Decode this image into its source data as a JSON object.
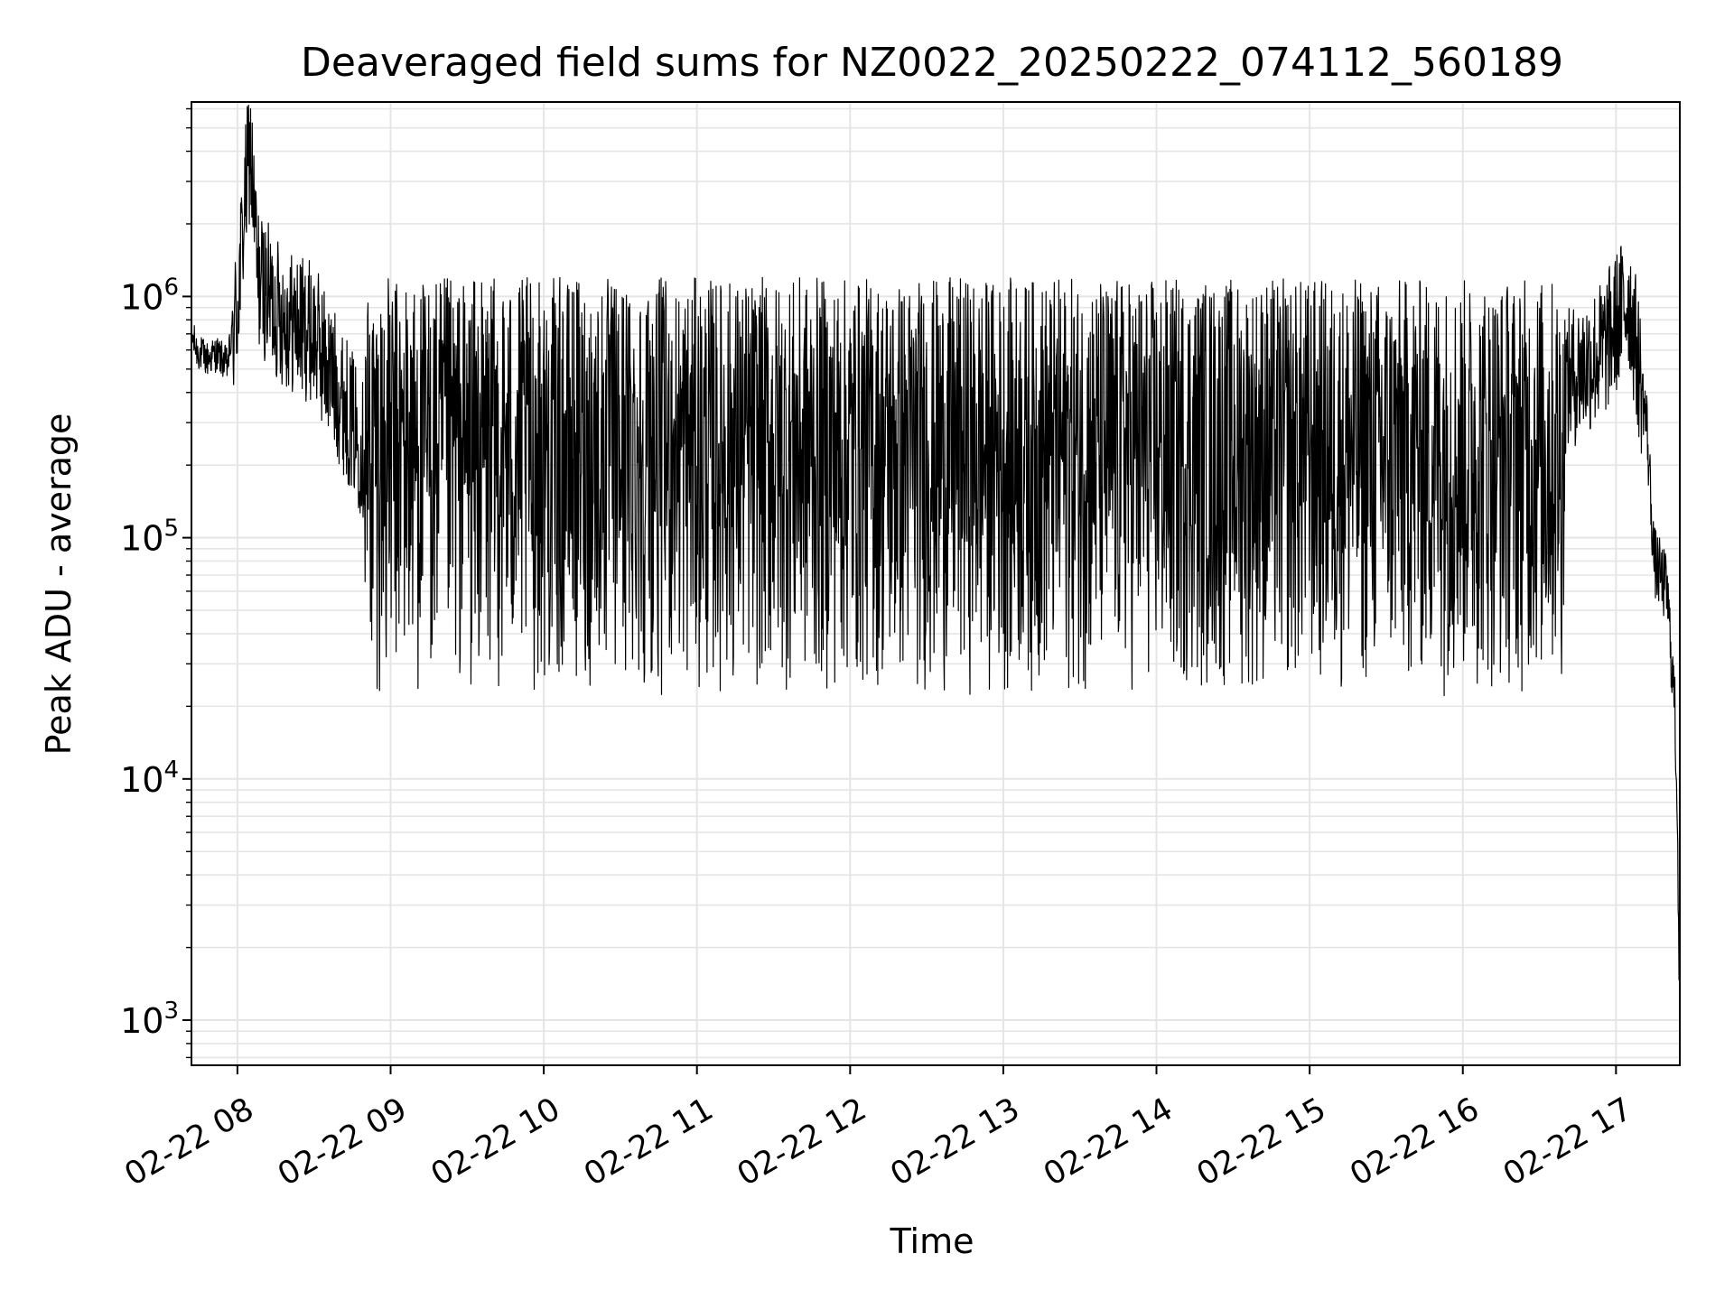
{
  "chart_data": {
    "type": "line",
    "title": "Deaveraged field sums for NZ0022_20250222_074112_560189",
    "xlabel": "Time",
    "ylabel": "Peak ADU - average",
    "yscale": "log",
    "ylim": [
      650,
      6400000
    ],
    "xlim": [
      "2025-02-22 07:42",
      "2025-02-22 17:25"
    ],
    "grid": true,
    "line_color": "#000000",
    "grid_color": "#e5e5e5",
    "x_ticks": [
      {
        "t": "2025-02-22 08:00",
        "label": "02-22 08"
      },
      {
        "t": "2025-02-22 09:00",
        "label": "02-22 09"
      },
      {
        "t": "2025-02-22 10:00",
        "label": "02-22 10"
      },
      {
        "t": "2025-02-22 11:00",
        "label": "02-22 11"
      },
      {
        "t": "2025-02-22 12:00",
        "label": "02-22 12"
      },
      {
        "t": "2025-02-22 13:00",
        "label": "02-22 13"
      },
      {
        "t": "2025-02-22 14:00",
        "label": "02-22 14"
      },
      {
        "t": "2025-02-22 15:00",
        "label": "02-22 15"
      },
      {
        "t": "2025-02-22 16:00",
        "label": "02-22 16"
      },
      {
        "t": "2025-02-22 17:00",
        "label": "02-22 17"
      }
    ],
    "y_ticks": [
      {
        "value": 1000,
        "base": "10",
        "exp": "3"
      },
      {
        "value": 10000,
        "base": "10",
        "exp": "4"
      },
      {
        "value": 100000,
        "base": "10",
        "exp": "5"
      },
      {
        "value": 1000000,
        "base": "10",
        "exp": "6"
      }
    ],
    "series": [
      {
        "points": [
          [
            "2025-02-22 07:42",
            700000
          ],
          [
            "2025-02-22 07:44",
            600000
          ],
          [
            "2025-02-22 07:48",
            550000
          ],
          [
            "2025-02-22 07:52",
            580000
          ],
          [
            "2025-02-22 07:56",
            520000
          ],
          [
            "2025-02-22 08:00",
            900000
          ],
          [
            "2025-02-22 08:03",
            2500000
          ],
          [
            "2025-02-22 08:05",
            4200000
          ],
          [
            "2025-02-22 08:08",
            1200000
          ],
          [
            "2025-02-22 08:15",
            900000
          ],
          [
            "2025-02-22 08:20",
            800000
          ],
          [
            "2025-02-22 08:30",
            700000
          ],
          [
            "2025-02-22 08:45",
            300000
          ],
          [
            "2025-02-22 09:00",
            120000
          ],
          [
            "2025-02-22 09:30",
            150000
          ],
          [
            "2025-02-22 10:00",
            140000
          ],
          [
            "2025-02-22 10:30",
            130000
          ],
          [
            "2025-02-22 11:00",
            150000
          ],
          [
            "2025-02-22 11:30",
            120000
          ],
          [
            "2025-02-22 12:00",
            120000
          ],
          [
            "2025-02-22 12:30",
            250000
          ],
          [
            "2025-02-22 13:00",
            250000
          ],
          [
            "2025-02-22 13:30",
            250000
          ],
          [
            "2025-02-22 14:00",
            220000
          ],
          [
            "2025-02-22 14:30",
            200000
          ],
          [
            "2025-02-22 15:00",
            150000
          ],
          [
            "2025-02-22 15:30",
            180000
          ],
          [
            "2025-02-22 16:00",
            300000
          ],
          [
            "2025-02-22 16:30",
            350000
          ],
          [
            "2025-02-22 16:55",
            600000
          ],
          [
            "2025-02-22 17:05",
            1000000
          ],
          [
            "2025-02-22 17:12",
            300000
          ],
          [
            "2025-02-22 17:15",
            80000
          ],
          [
            "2025-02-22 17:20",
            60000
          ],
          [
            "2025-02-22 17:23",
            20000
          ],
          [
            "2025-02-22 17:24",
            8000
          ],
          [
            "2025-02-22 17:25",
            1000
          ]
        ]
      }
    ]
  }
}
